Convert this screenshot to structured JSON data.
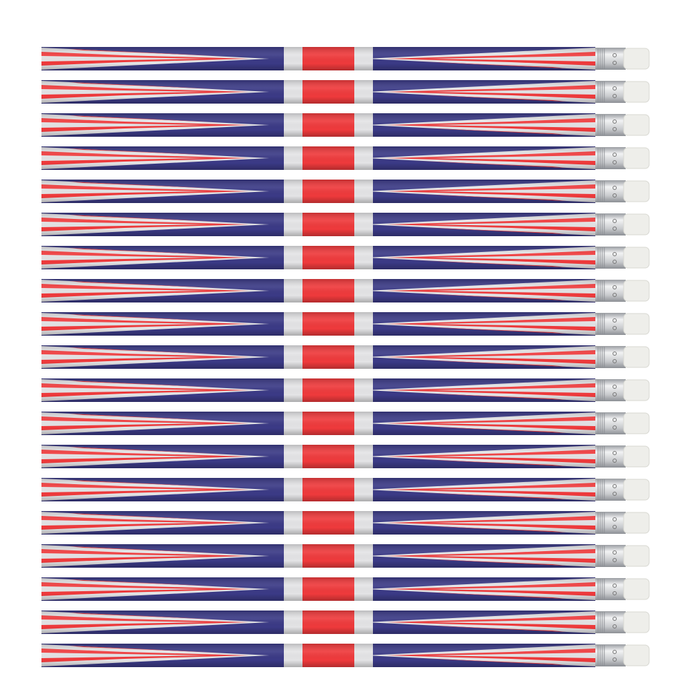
{
  "product": {
    "subject": "union-jack-pencils",
    "colors": {
      "blue": "#3b3a86",
      "red": "#ef3a3c",
      "white": "#e4e4e6",
      "ferrule": "#cfd1d4",
      "eraser": "#eeeeea",
      "background": "#ffffff"
    }
  }
}
